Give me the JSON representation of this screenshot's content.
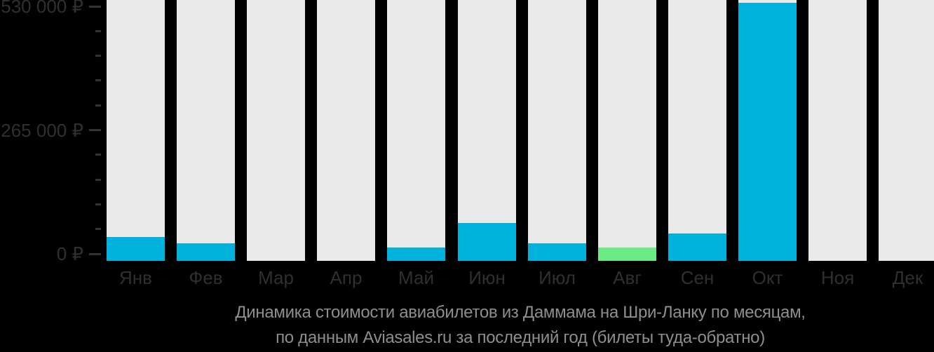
{
  "caption": {
    "line1": "Динамика стоимости авиабилетов из Даммама на Шри-Ланку по месяцам,",
    "line2": "по данным Aviasales.ru за последний год (билеты туда-обратно)"
  },
  "chart_data": {
    "type": "bar",
    "title": "Динамика стоимости авиабилетов из Даммама на Шри-Ланку по месяцам, по данным Aviasales.ru за последний год (билеты туда-обратно)",
    "categories": [
      "Янв",
      "Фев",
      "Мар",
      "Апр",
      "Май",
      "Июн",
      "Июл",
      "Авг",
      "Сен",
      "Окт",
      "Ноя",
      "Дек"
    ],
    "values": [
      49000,
      36000,
      null,
      null,
      27000,
      78000,
      36000,
      27000,
      56000,
      530000,
      null,
      null
    ],
    "highlight_index": 7,
    "highlight_category": "Авг",
    "xlabel": "",
    "ylabel": "",
    "ylim": [
      0,
      530000
    ],
    "currency": "₽",
    "yticks": [
      {
        "label": "0 ₽",
        "value": 0
      },
      {
        "label": "265 000 ₽",
        "value": 265000
      },
      {
        "label": "530 000 ₽",
        "value": 530000
      }
    ],
    "minor_ticks_per_gap": 4,
    "grid": "off",
    "legend": "none"
  },
  "colors": {
    "background": "#000000",
    "column_bg": "#e9e9e9",
    "bar": "#00b1dc",
    "bar_highlight": "#6ceb84",
    "axis_text": "#2d2f31",
    "tick_mark": "#303234",
    "caption_text": "#8e8e8e"
  }
}
